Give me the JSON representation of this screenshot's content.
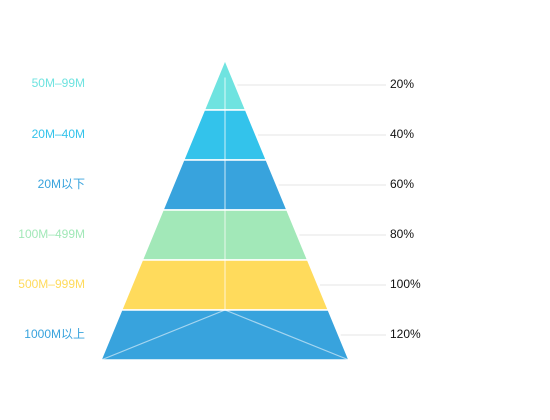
{
  "chart_data": {
    "type": "pyramid",
    "tiers": [
      {
        "label": "50M–99M",
        "value": "20%",
        "color": "#6FE3E0"
      },
      {
        "label": "20M–40M",
        "value": "40%",
        "color": "#33C3EB"
      },
      {
        "label": "20M以下",
        "value": "60%",
        "color": "#38A3DD"
      },
      {
        "label": "100M–499M",
        "value": "80%",
        "color": "#A2E8B8"
      },
      {
        "label": "500M–999M",
        "value": "100%",
        "color": "#FFDB5C"
      },
      {
        "label": "1000M以上",
        "value": "120%",
        "color": "#38A3DD"
      }
    ],
    "tick_labels": [
      "20%",
      "40%",
      "60%",
      "80%",
      "100%",
      "120%"
    ]
  }
}
